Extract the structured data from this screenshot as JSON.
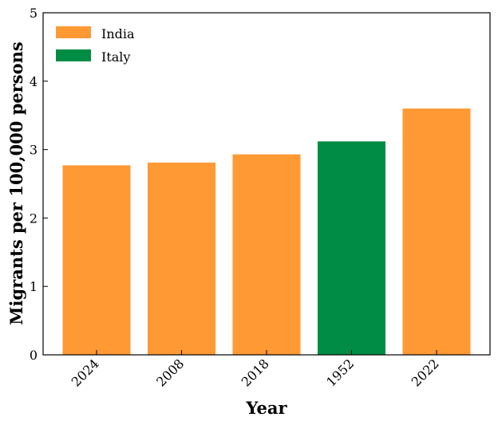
{
  "chart_data": {
    "type": "bar",
    "title": "",
    "xlabel": "Year",
    "ylabel": "Migrants per 100,000 persons",
    "categories": [
      "2024",
      "2008",
      "2018",
      "1952",
      "2022"
    ],
    "values": [
      2.77,
      2.81,
      2.93,
      3.12,
      3.6
    ],
    "bar_series": [
      "India",
      "India",
      "India",
      "Italy",
      "India"
    ],
    "legend": [
      {
        "name": "India",
        "color": "#FF9933"
      },
      {
        "name": "Italy",
        "color": "#008C45"
      }
    ],
    "legend_position": "top-left",
    "ylim": [
      0,
      5
    ],
    "yticks": [
      0,
      1,
      2,
      3,
      4,
      5
    ],
    "grid": false
  }
}
